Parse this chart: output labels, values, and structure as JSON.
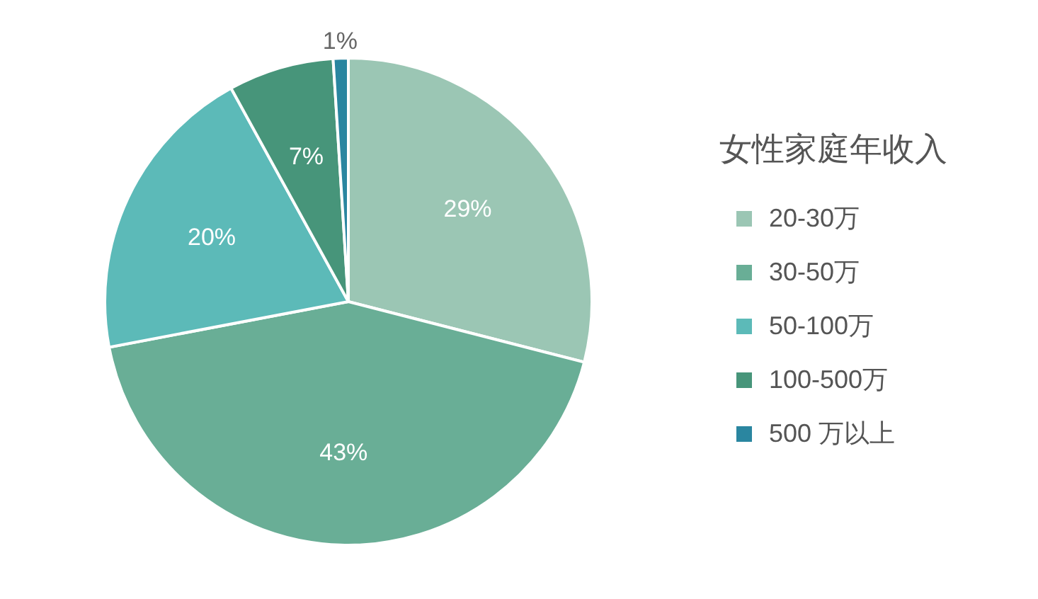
{
  "chart_data": {
    "type": "pie",
    "legend_title": "女性家庭年收入",
    "categories": [
      "20-30万",
      "30-50万",
      "50-100万",
      "100-500万",
      "500 万以上"
    ],
    "values": [
      29,
      43,
      20,
      7,
      1
    ],
    "colors": [
      "#9bc6b4",
      "#69ae96",
      "#5cbab8",
      "#47957a",
      "#2a86a0"
    ],
    "value_labels": [
      "29%",
      "43%",
      "20%",
      "7%",
      "1%"
    ],
    "legend": "right"
  }
}
